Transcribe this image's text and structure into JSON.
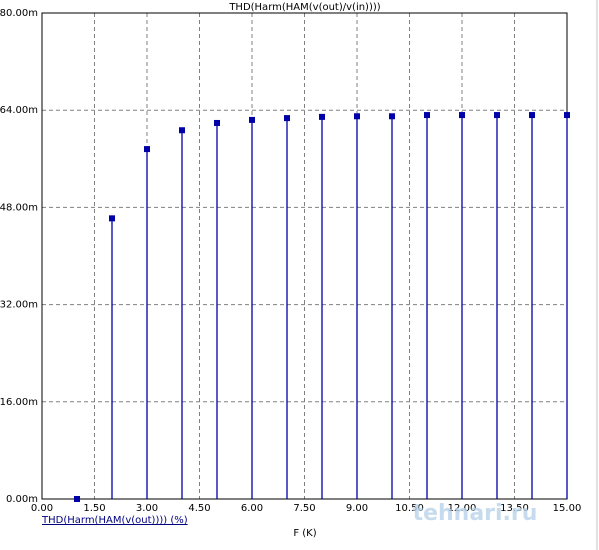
{
  "chart_data": {
    "type": "stem",
    "title": "THD(Harm(HAM(v(out)/v(in))))",
    "xlabel": "F (K)",
    "legend": "THD(Harm(HAM(v(out)))) (%)",
    "watermark": "tehnari.ru",
    "color": "#0000a8",
    "grid": true,
    "x": [
      1,
      2,
      3,
      4,
      5,
      6,
      7,
      8,
      9,
      10,
      11,
      12,
      13,
      14,
      15
    ],
    "values": [
      0,
      46.2,
      57.6,
      60.7,
      61.9,
      62.4,
      62.7,
      62.9,
      63.0,
      63.0,
      63.2,
      63.2,
      63.2,
      63.2,
      63.2
    ],
    "xlim": [
      0,
      15
    ],
    "xticks": [
      {
        "value": 0,
        "label": "0.00"
      },
      {
        "value": 1.5,
        "label": "1.50"
      },
      {
        "value": 3,
        "label": "3.00"
      },
      {
        "value": 4.5,
        "label": "4.50"
      },
      {
        "value": 6,
        "label": "6.00"
      },
      {
        "value": 7.5,
        "label": "7.50"
      },
      {
        "value": 9,
        "label": "9.00"
      },
      {
        "value": 10.5,
        "label": "10.50"
      },
      {
        "value": 12,
        "label": "12.00"
      },
      {
        "value": 13.5,
        "label": "13.50"
      },
      {
        "value": 15,
        "label": "15.00"
      }
    ],
    "ylim": [
      0,
      80
    ],
    "yticks": [
      {
        "value": 0,
        "label": "0.00m"
      },
      {
        "value": 16,
        "label": "16.00m"
      },
      {
        "value": 32,
        "label": "32.00m"
      },
      {
        "value": 48,
        "label": "48.00m"
      },
      {
        "value": 64,
        "label": "64.00m"
      },
      {
        "value": 80,
        "label": "80.00m"
      }
    ]
  }
}
